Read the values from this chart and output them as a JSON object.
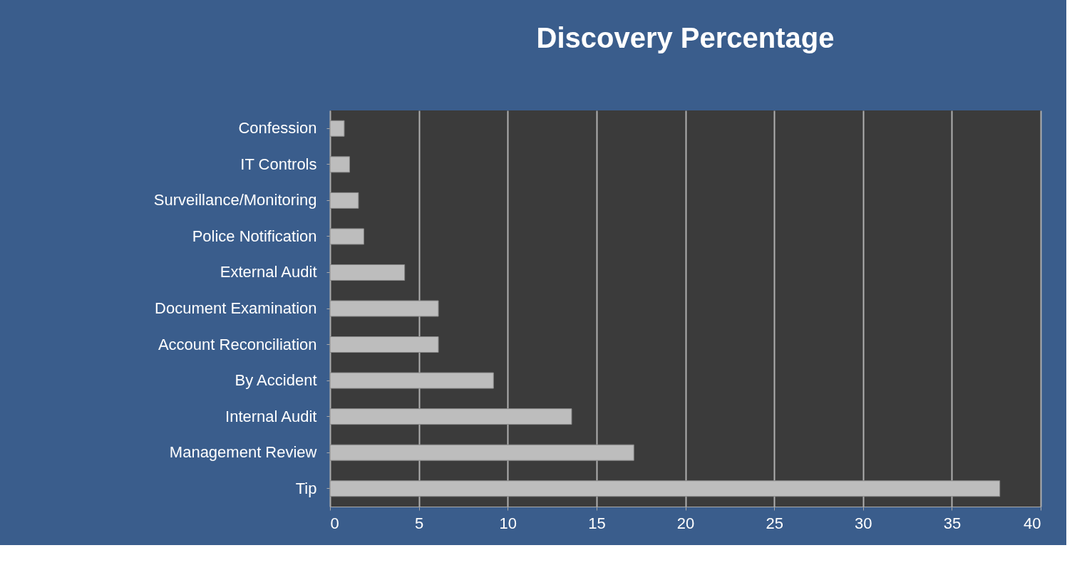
{
  "chart_data": {
    "type": "bar",
    "orientation": "horizontal",
    "title": "Discovery Percentage",
    "categories": [
      "Confession",
      "IT Controls",
      "Surveillance/Monitoring",
      "Police Notification",
      "External Audit",
      "Document Examination",
      "Account Reconciliation",
      "By Accident",
      "Internal Audit",
      "Management Review",
      "Tip"
    ],
    "values": [
      0.8,
      1.1,
      1.6,
      1.9,
      4.2,
      6.1,
      6.1,
      9.2,
      13.6,
      17.1,
      37.7
    ],
    "color": "#bdbdbd",
    "xlim": [
      0,
      40
    ],
    "xticks": [
      0,
      5,
      10,
      15,
      20,
      25,
      30,
      35,
      40
    ],
    "grid": "x"
  }
}
